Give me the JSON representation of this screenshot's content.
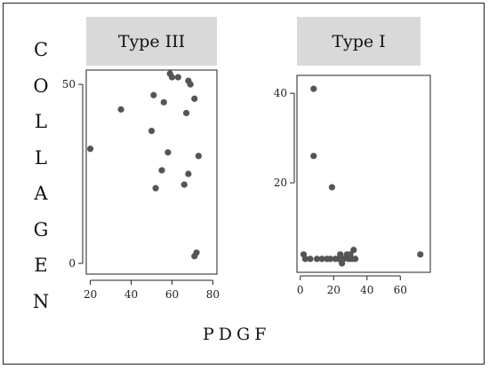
{
  "chart_data": [
    {
      "type": "scatter",
      "panel": "Type III",
      "x_ticks": [
        20,
        40,
        60,
        80
      ],
      "y_ticks": [
        0,
        50
      ],
      "xlim": [
        18,
        82
      ],
      "ylim": [
        -3,
        54
      ],
      "points": [
        {
          "x": 20,
          "y": 32
        },
        {
          "x": 35,
          "y": 43
        },
        {
          "x": 50,
          "y": 37
        },
        {
          "x": 51,
          "y": 47
        },
        {
          "x": 52,
          "y": 21
        },
        {
          "x": 55,
          "y": 26
        },
        {
          "x": 56,
          "y": 45
        },
        {
          "x": 58,
          "y": 31
        },
        {
          "x": 59,
          "y": 53
        },
        {
          "x": 60,
          "y": 52
        },
        {
          "x": 63,
          "y": 52
        },
        {
          "x": 66,
          "y": 22
        },
        {
          "x": 67,
          "y": 42
        },
        {
          "x": 68,
          "y": 25
        },
        {
          "x": 68,
          "y": 51
        },
        {
          "x": 69,
          "y": 50
        },
        {
          "x": 71,
          "y": 46
        },
        {
          "x": 71,
          "y": 2
        },
        {
          "x": 72,
          "y": 3
        },
        {
          "x": 73,
          "y": 30
        }
      ]
    },
    {
      "type": "scatter",
      "panel": "Type I",
      "x_ticks": [
        0,
        20,
        40,
        60
      ],
      "y_ticks": [
        20,
        40
      ],
      "xlim": [
        -2,
        78
      ],
      "ylim": [
        0,
        44
      ],
      "points": [
        {
          "x": 2,
          "y": 4
        },
        {
          "x": 3,
          "y": 3
        },
        {
          "x": 6,
          "y": 3
        },
        {
          "x": 8,
          "y": 41
        },
        {
          "x": 8,
          "y": 26
        },
        {
          "x": 10,
          "y": 3
        },
        {
          "x": 13,
          "y": 3
        },
        {
          "x": 16,
          "y": 3
        },
        {
          "x": 18,
          "y": 3
        },
        {
          "x": 19,
          "y": 19
        },
        {
          "x": 21,
          "y": 3
        },
        {
          "x": 23,
          "y": 3
        },
        {
          "x": 24,
          "y": 4
        },
        {
          "x": 25,
          "y": 2
        },
        {
          "x": 26,
          "y": 3
        },
        {
          "x": 28,
          "y": 4
        },
        {
          "x": 29,
          "y": 3
        },
        {
          "x": 30,
          "y": 4
        },
        {
          "x": 31,
          "y": 3
        },
        {
          "x": 32,
          "y": 5
        },
        {
          "x": 33,
          "y": 3
        },
        {
          "x": 72,
          "y": 4
        }
      ]
    }
  ],
  "labels": {
    "y_axis_letters": [
      "C",
      "O",
      "L",
      "L",
      "A",
      "G",
      "E",
      "N"
    ],
    "x_axis": "PDGF",
    "panel_left_title": "Type III",
    "panel_right_title": "Type I"
  },
  "colors": {
    "point": "#555555",
    "strip": "#d9d9d9",
    "axis": "#222222"
  }
}
